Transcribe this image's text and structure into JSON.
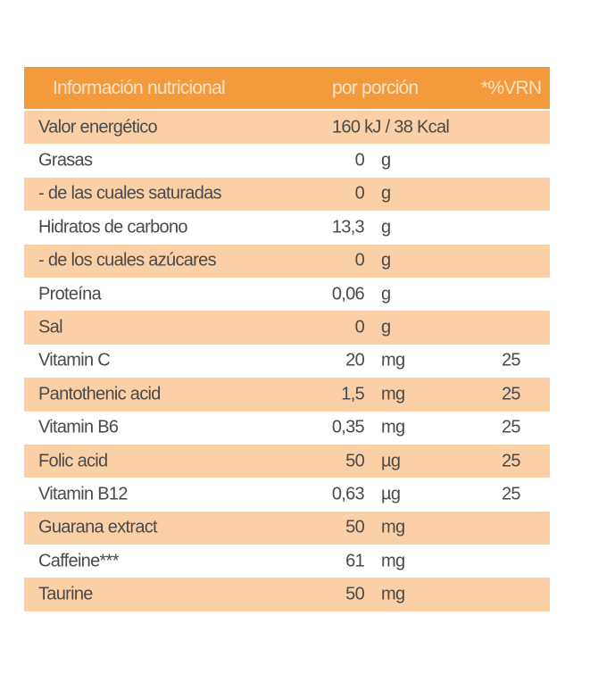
{
  "header": {
    "label": "Información nutricional",
    "per_serving": "por porción",
    "vrn": "*%VRN"
  },
  "colors": {
    "header": "#f39a3c",
    "band": "#fbd0a6",
    "text": "#4a4a4a"
  },
  "energy": {
    "label": "Valor energético",
    "value": "160 kJ / 38 Kcal"
  },
  "rows": [
    {
      "label": "Grasas",
      "value": "0",
      "unit": "g",
      "vrn": ""
    },
    {
      "label": " - de las cuales saturadas",
      "value": "0",
      "unit": "g",
      "vrn": ""
    },
    {
      "label": "Hidratos de carbono",
      "value": "13,3",
      "unit": "g",
      "vrn": ""
    },
    {
      "label": " - de los cuales azúcares",
      "value": "0",
      "unit": "g",
      "vrn": ""
    },
    {
      "label": "Proteína",
      "value": "0,06",
      "unit": "g",
      "vrn": ""
    },
    {
      "label": "Sal",
      "value": "0",
      "unit": "g",
      "vrn": ""
    },
    {
      "label": "Vitamin C",
      "value": "20",
      "unit": "mg",
      "vrn": "25"
    },
    {
      "label": "Pantothenic acid",
      "value": "1,5",
      "unit": "mg",
      "vrn": "25"
    },
    {
      "label": "Vitamin B6",
      "value": "0,35",
      "unit": "mg",
      "vrn": "25"
    },
    {
      "label": "Folic acid",
      "value": "50",
      "unit": "µg",
      "vrn": "25"
    },
    {
      "label": "Vitamin B12",
      "value": "0,63",
      "unit": "µg",
      "vrn": "25"
    },
    {
      "label": "Guarana extract",
      "value": "50",
      "unit": "mg",
      "vrn": ""
    },
    {
      "label": "Caffeine***",
      "value": "61",
      "unit": "mg",
      "vrn": ""
    },
    {
      "label": "Taurine",
      "value": "50",
      "unit": "mg",
      "vrn": ""
    }
  ]
}
